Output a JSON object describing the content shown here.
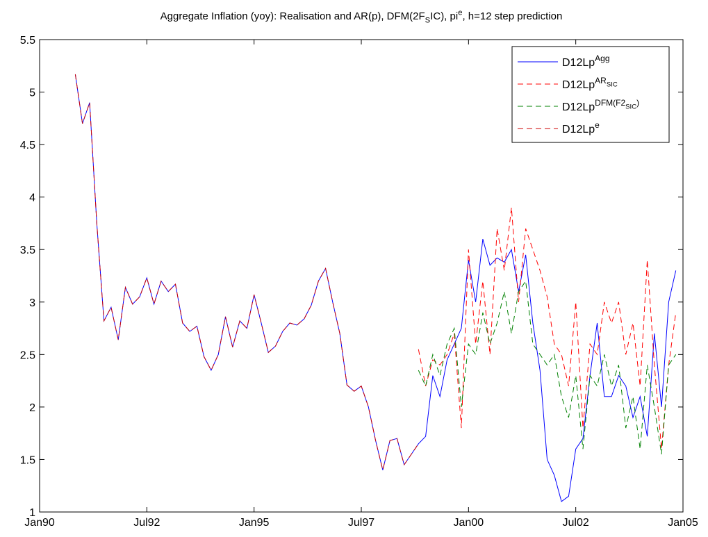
{
  "chart_data": {
    "type": "line",
    "title": [
      {
        "text": "Aggregate Inflation (yoy): Realisation and AR(p), DFM(2F",
        "pos": "base"
      },
      {
        "text": "S",
        "pos": "sub"
      },
      {
        "text": "IC), pi",
        "pos": "base"
      },
      {
        "text": "e",
        "pos": "sup"
      },
      {
        "text": ", h=12 step prediction",
        "pos": "base"
      }
    ],
    "x": [
      "Nov90",
      "Jan91",
      "Mar91",
      "May91",
      "Jul91",
      "Sep91",
      "Nov91",
      "Jan92",
      "Mar92",
      "May92",
      "Jul92",
      "Sep92",
      "Nov92",
      "Jan93",
      "Mar93",
      "May93",
      "Jul93",
      "Sep93",
      "Nov93",
      "Jan94",
      "Mar94",
      "May94",
      "Jul94",
      "Sep94",
      "Nov94",
      "Jan95",
      "Mar95",
      "May95",
      "Jul95",
      "Sep95",
      "Nov95",
      "Jan96",
      "Mar96",
      "May96",
      "Jul96",
      "Sep96",
      "Nov96",
      "Jan97",
      "Mar97",
      "May97",
      "Jul97",
      "Sep97",
      "Nov97",
      "Jan98",
      "Mar98",
      "May98",
      "Jul98",
      "Sep98",
      "Nov98",
      "Jan99",
      "Mar99",
      "May99",
      "Jul99",
      "Sep99",
      "Nov99",
      "Jan00",
      "Mar00",
      "May00",
      "Jul00",
      "Sep00",
      "Nov00",
      "Jan01",
      "Mar01",
      "May01",
      "Jul01",
      "Sep01",
      "Nov01",
      "Jan02",
      "Mar02",
      "May02",
      "Jul02",
      "Sep02",
      "Nov02",
      "Jan03",
      "Mar03",
      "May03",
      "Jul03",
      "Sep03",
      "Nov03",
      "Jan04",
      "Mar04",
      "May04",
      "Jul04",
      "Sep04",
      "Nov04"
    ],
    "series": [
      {
        "name": [
          {
            "text": "D12Lp",
            "pos": "base"
          },
          {
            "text": "Agg",
            "pos": "sup"
          }
        ],
        "color": "#0000ff",
        "dash": "solid",
        "values": [
          5.17,
          4.7,
          4.9,
          3.75,
          2.82,
          2.95,
          2.64,
          3.14,
          2.98,
          3.05,
          3.23,
          2.98,
          3.2,
          3.1,
          3.17,
          2.8,
          2.72,
          2.77,
          2.48,
          2.35,
          2.5,
          2.86,
          2.57,
          2.82,
          2.75,
          3.07,
          2.8,
          2.52,
          2.58,
          2.72,
          2.8,
          2.78,
          2.84,
          2.97,
          3.2,
          3.32,
          3.0,
          2.7,
          2.21,
          2.15,
          2.2,
          2.0,
          1.68,
          1.4,
          1.68,
          1.7,
          1.45,
          1.55,
          1.65,
          1.72,
          2.3,
          2.1,
          2.45,
          2.6,
          2.75,
          3.4,
          3.0,
          3.6,
          3.35,
          3.42,
          3.38,
          3.5,
          3.1,
          3.45,
          2.8,
          2.35,
          1.5,
          1.35,
          1.1,
          1.15,
          1.6,
          1.7,
          2.3,
          2.8,
          2.1,
          2.1,
          2.3,
          2.2,
          1.9,
          2.1,
          1.72,
          2.7,
          2.0,
          3.0,
          3.3
        ]
      },
      {
        "name": [
          {
            "text": "D12Lp",
            "pos": "base"
          },
          {
            "text": "AR",
            "pos": "sup"
          },
          {
            "text": "SIC",
            "pos": "supsub"
          }
        ],
        "color": "#ff0000",
        "dash": "dashed",
        "values": [
          null,
          null,
          null,
          null,
          null,
          null,
          null,
          null,
          null,
          null,
          null,
          null,
          null,
          null,
          null,
          null,
          null,
          null,
          null,
          null,
          null,
          null,
          null,
          null,
          null,
          null,
          null,
          null,
          null,
          null,
          null,
          null,
          null,
          null,
          null,
          null,
          null,
          null,
          null,
          null,
          null,
          null,
          null,
          null,
          null,
          null,
          null,
          null,
          2.55,
          2.2,
          2.45,
          2.4,
          2.5,
          2.7,
          1.8,
          3.5,
          2.6,
          3.2,
          2.5,
          3.7,
          3.3,
          3.9,
          3.0,
          3.7,
          3.5,
          3.3,
          3.05,
          2.6,
          2.5,
          2.2,
          3.0,
          1.8,
          2.6,
          2.5,
          3.0,
          2.8,
          3.0,
          2.5,
          2.8,
          2.2,
          3.4,
          2.4,
          1.6,
          2.4,
          2.9
        ]
      },
      {
        "name": [
          {
            "text": "D12Lp",
            "pos": "base"
          },
          {
            "text": "DFM(F2",
            "pos": "sup"
          },
          {
            "text": "SIC",
            "pos": "supsub"
          },
          {
            "text": ")",
            "pos": "sup"
          }
        ],
        "color": "#008000",
        "dash": "dashed",
        "values": [
          null,
          null,
          null,
          null,
          null,
          null,
          null,
          null,
          null,
          null,
          null,
          null,
          null,
          null,
          null,
          null,
          null,
          null,
          null,
          null,
          null,
          null,
          null,
          null,
          null,
          null,
          null,
          null,
          null,
          null,
          null,
          null,
          null,
          null,
          null,
          null,
          null,
          null,
          null,
          null,
          null,
          null,
          null,
          null,
          null,
          null,
          null,
          null,
          2.35,
          2.2,
          2.5,
          2.3,
          2.6,
          2.75,
          2.0,
          2.6,
          2.5,
          2.9,
          2.6,
          2.8,
          3.1,
          2.7,
          3.1,
          3.2,
          2.6,
          2.5,
          2.4,
          2.5,
          2.1,
          1.9,
          2.3,
          1.6,
          2.3,
          2.2,
          2.5,
          2.2,
          2.4,
          1.8,
          2.1,
          1.6,
          2.4,
          2.0,
          1.55,
          2.4,
          2.5
        ]
      },
      {
        "name": [
          {
            "text": "D12Lp",
            "pos": "base"
          },
          {
            "text": "e",
            "pos": "sup"
          }
        ],
        "color": "#cc0000",
        "dash": "dashed",
        "values": [
          5.17,
          4.7,
          4.9,
          3.75,
          2.82,
          2.95,
          2.64,
          3.14,
          2.98,
          3.05,
          3.23,
          2.98,
          3.2,
          3.1,
          3.17,
          2.8,
          2.72,
          2.77,
          2.48,
          2.35,
          2.5,
          2.86,
          2.57,
          2.82,
          2.75,
          3.07,
          2.8,
          2.52,
          2.58,
          2.72,
          2.8,
          2.78,
          2.84,
          2.97,
          3.2,
          3.32,
          3.0,
          2.7,
          2.21,
          2.15,
          2.2,
          2.0,
          1.68,
          1.4,
          1.68,
          1.7,
          1.45,
          1.55,
          1.65,
          null,
          null,
          null,
          null,
          null,
          null,
          null,
          null,
          null,
          null,
          null,
          null,
          null,
          null,
          null,
          null,
          null,
          null,
          null,
          null,
          null,
          null,
          null,
          null,
          null,
          null,
          null,
          null,
          null,
          null,
          null,
          null,
          null,
          null,
          null,
          null
        ]
      }
    ],
    "xlim": [
      "Jan90",
      "Jan05"
    ],
    "xticks": [
      "Jan90",
      "Jul92",
      "Jan95",
      "Jul97",
      "Jan00",
      "Jul02",
      "Jan05"
    ],
    "ylim": [
      1,
      5.5
    ],
    "yticks": [
      1,
      1.5,
      2,
      2.5,
      3,
      3.5,
      4,
      4.5,
      5,
      5.5
    ],
    "legend": "upper right"
  }
}
